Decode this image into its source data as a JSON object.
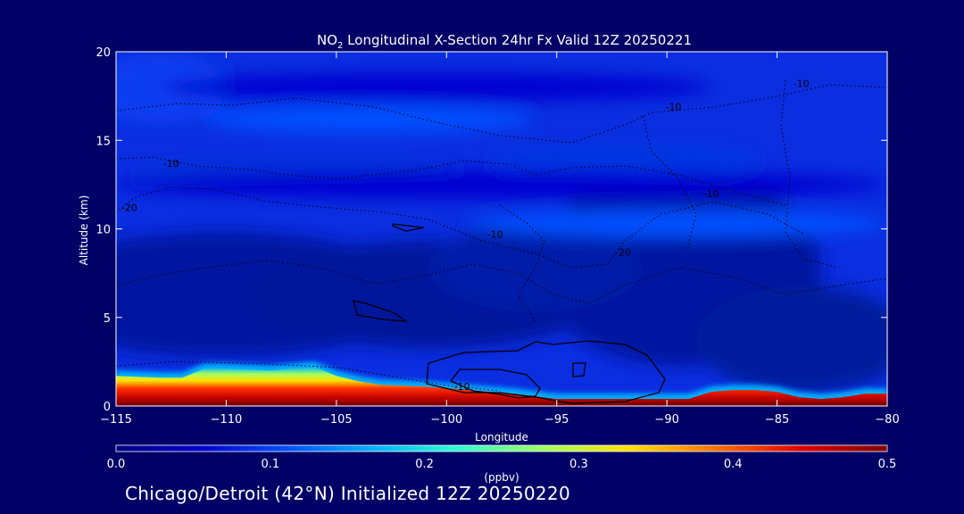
{
  "chart_data": {
    "type": "heatmap",
    "title_main": "NO",
    "title_sub": "2",
    "title_rest": " Longitudinal X-Section 24hr  Fx Valid 12Z 20250221",
    "xlabel": "Longitude",
    "ylabel": "Altitude (km)",
    "xlim": [
      -115,
      -80
    ],
    "ylim": [
      0,
      20
    ],
    "x_ticks": [
      -115,
      -110,
      -105,
      -100,
      -95,
      -90,
      -85,
      -80
    ],
    "x_tick_labels": [
      "−115",
      "−110",
      "−105",
      "−100",
      "−95",
      "−90",
      "−85",
      "−80"
    ],
    "y_ticks": [
      0,
      5,
      10,
      15,
      20
    ],
    "y_tick_labels": [
      "0",
      "5",
      "10",
      "15",
      "20"
    ],
    "colorbar": {
      "label": "(ppbv)",
      "min": 0.0,
      "max": 0.5,
      "ticks": [
        0.0,
        0.1,
        0.2,
        0.3,
        0.4,
        0.5
      ],
      "tick_labels": [
        "0.0",
        "0.1",
        "0.2",
        "0.3",
        "0.4",
        "0.5"
      ],
      "colors": [
        "#000080",
        "#0000d0",
        "#0050ff",
        "#00b0ff",
        "#30ffd0",
        "#a0ff60",
        "#ffe000",
        "#ff7000",
        "#e00000",
        "#800000"
      ]
    },
    "surface_layer": {
      "lon": [
        -115,
        -113,
        -112,
        -111,
        -110,
        -108,
        -107,
        -106,
        -105,
        -104,
        -103,
        -101,
        -99,
        -97,
        -95,
        -93,
        -91,
        -89,
        -88,
        -87,
        -86,
        -85,
        -84,
        -83,
        -82,
        -81,
        -80
      ],
      "top_km": [
        1.7,
        1.6,
        1.6,
        2.1,
        2.1,
        2.0,
        2.1,
        2.2,
        1.7,
        1.4,
        1.2,
        1.1,
        0.9,
        0.7,
        0.4,
        0.4,
        0.4,
        0.4,
        0.8,
        0.9,
        0.9,
        0.8,
        0.5,
        0.4,
        0.5,
        0.7,
        0.7
      ]
    },
    "bands": [
      {
        "altitude_km": 16.2,
        "lon_range": [
          -111,
          -96
        ],
        "value": 0.13
      },
      {
        "altitude_km": 10.3,
        "lon_range": [
          -99,
          -80
        ],
        "value": 0.12
      },
      {
        "altitude_km": 18.0,
        "lon_range": [
          -113,
          -88
        ],
        "value": 0.07
      },
      {
        "altitude_km": 12.5,
        "lon_range": [
          -115,
          -80
        ],
        "value": 0.08
      }
    ],
    "contour_labels": [
      {
        "text": "-10",
        "lon": -83.9,
        "alt": 18.0
      },
      {
        "text": "-10",
        "lon": -89.7,
        "alt": 16.7
      },
      {
        "text": "-10",
        "lon": -112.5,
        "alt": 13.5
      },
      {
        "text": "-20",
        "lon": -114.4,
        "alt": 11.0
      },
      {
        "text": "-10",
        "lon": -88.0,
        "alt": 11.8
      },
      {
        "text": "-10",
        "lon": -99.3,
        "alt": 0.9
      },
      {
        "text": "-20",
        "lon": -92.0,
        "alt": 8.5
      },
      {
        "text": "-10",
        "lon": -97.8,
        "alt": 9.5
      }
    ]
  },
  "footer": "Chicago/Detroit (42°N) Initialized 12Z 20250220"
}
